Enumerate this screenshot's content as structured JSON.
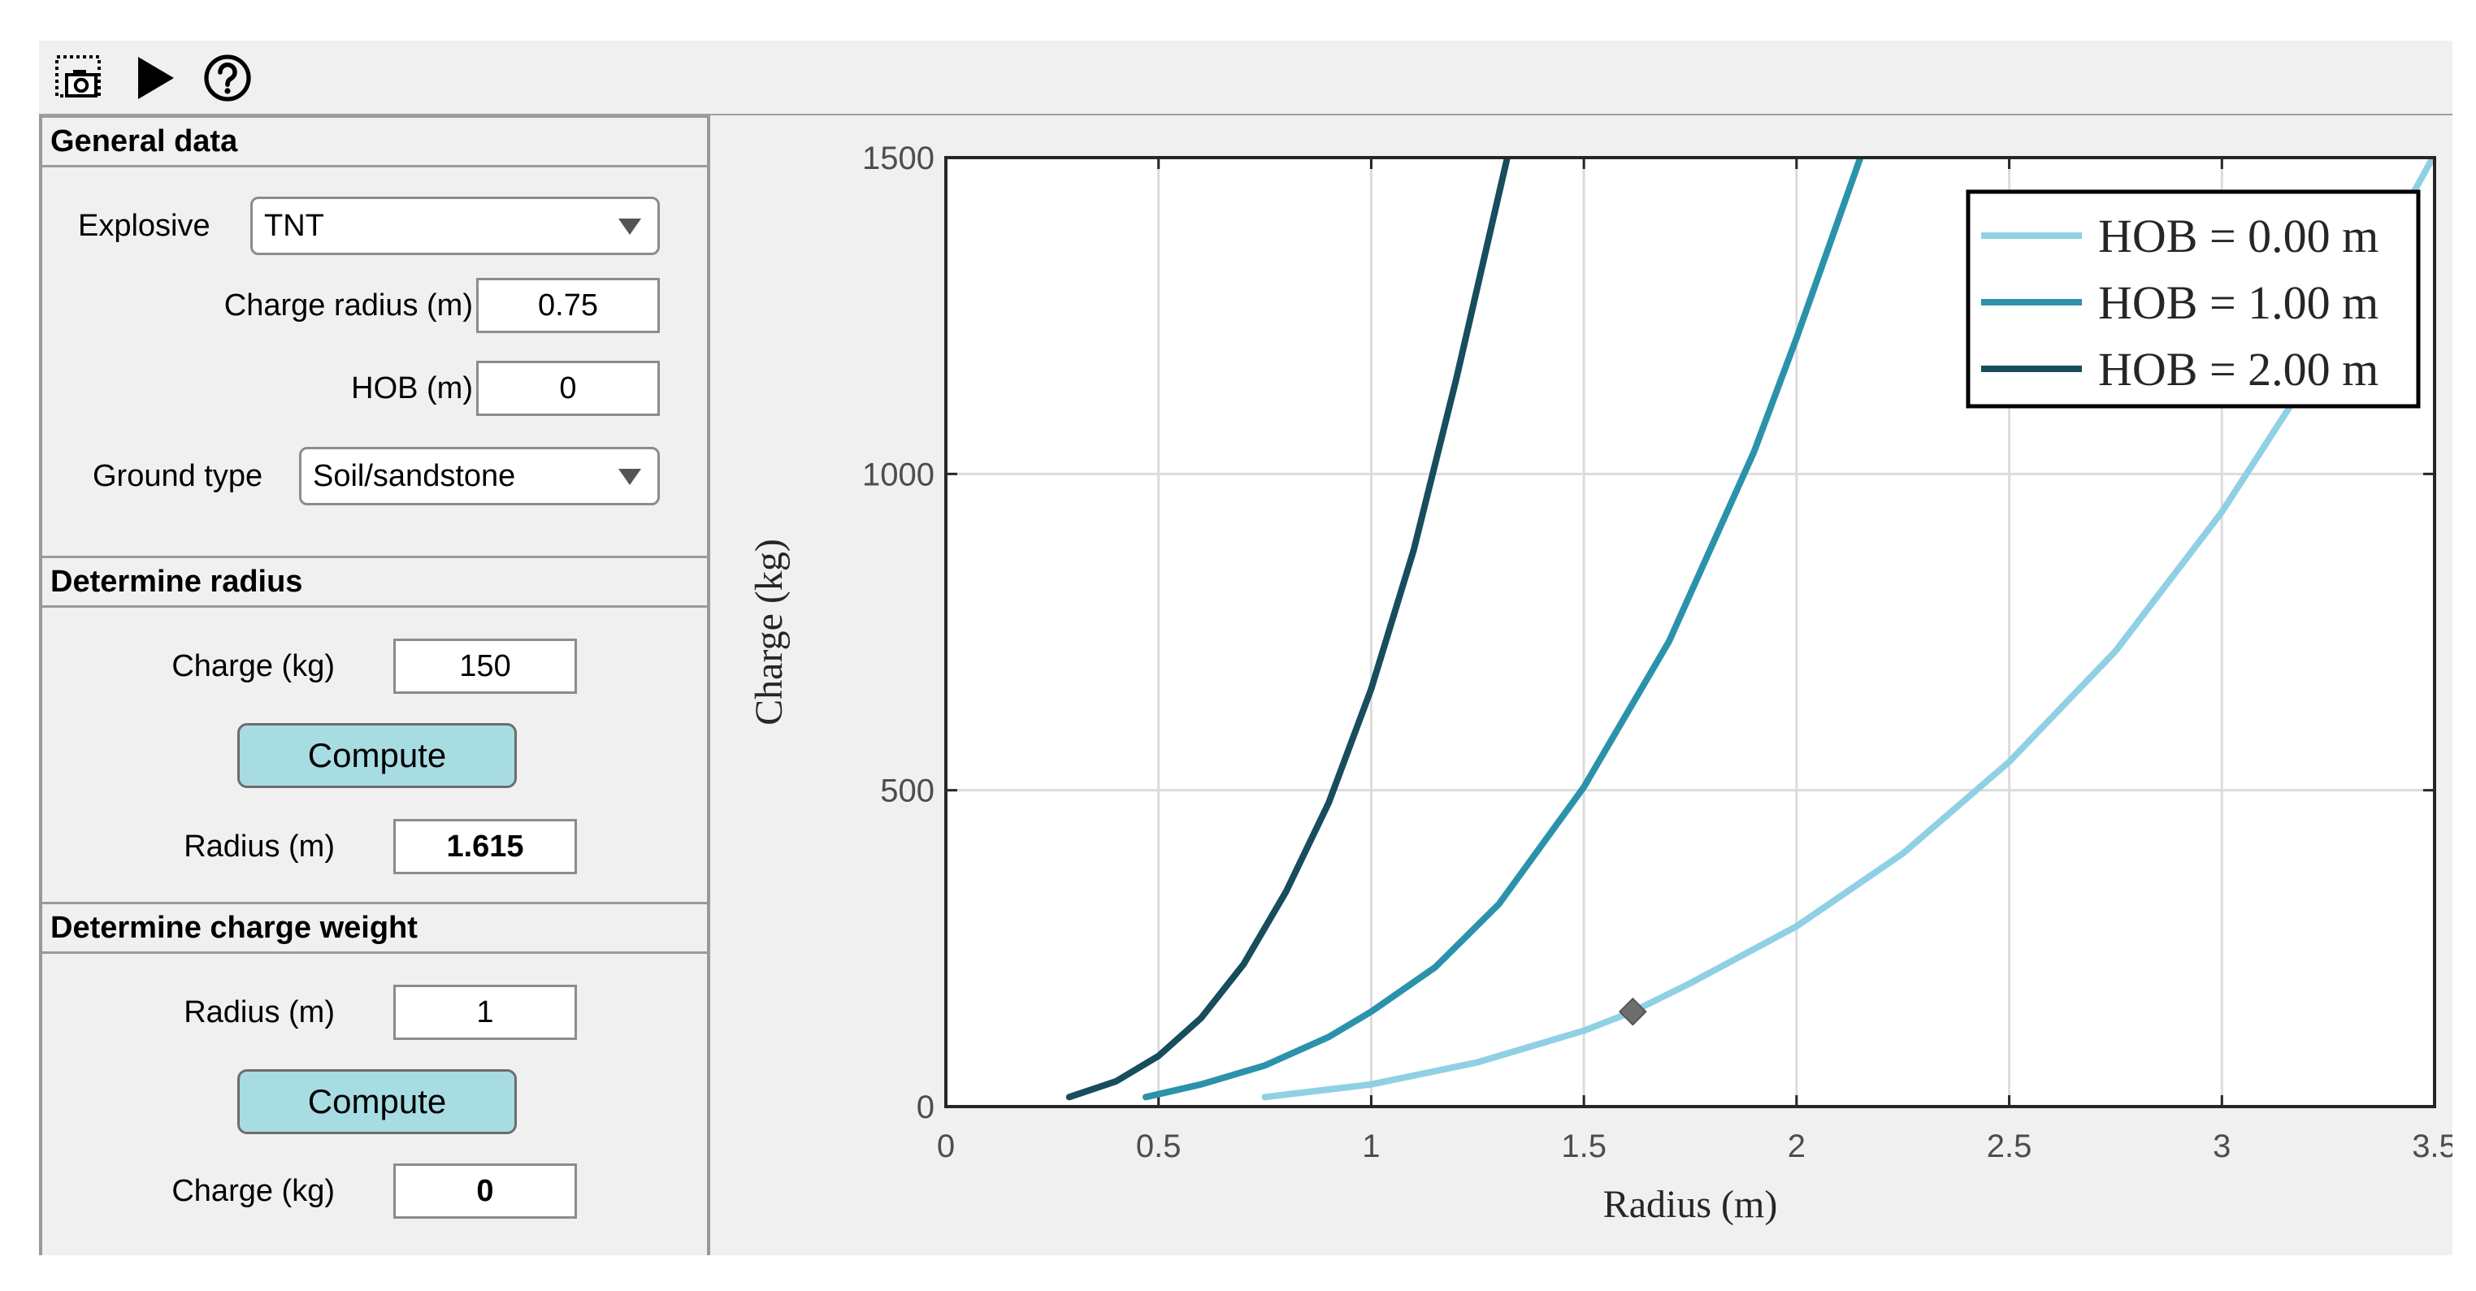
{
  "general": {
    "header": "General data",
    "explosive_label": "Explosive",
    "explosive_value": "TNT",
    "charge_radius_label": "Charge radius (m)",
    "charge_radius_value": "0.75",
    "hob_label": "HOB (m)",
    "hob_value": "0",
    "ground_label": "Ground type",
    "ground_value": "Soil/sandstone"
  },
  "radius_section": {
    "header": "Determine radius",
    "charge_label": "Charge (kg)",
    "charge_value": "150",
    "compute_label": "Compute",
    "radius_label": "Radius (m)",
    "radius_value": "1.615"
  },
  "weight_section": {
    "header": "Determine charge weight",
    "radius_label": "Radius (m)",
    "radius_value": "1",
    "compute_label": "Compute",
    "charge_label": "Charge (kg)",
    "charge_value": "0"
  },
  "toolbar": {
    "icons": [
      "screenshot-icon",
      "play-icon",
      "help-icon"
    ]
  },
  "chart_data": {
    "type": "line",
    "xlabel": "Radius (m)",
    "ylabel": "Charge (kg)",
    "xlim": [
      0,
      3.5
    ],
    "ylim": [
      0,
      1500
    ],
    "xticks": [
      "0",
      "0.5",
      "1",
      "1.5",
      "2",
      "2.5",
      "3",
      "3.5"
    ],
    "yticks": [
      "0",
      "500",
      "1000",
      "1500"
    ],
    "grid": true,
    "legend_position": "top-right",
    "series": [
      {
        "name": "HOB = 0.00 m",
        "color": "#8fd0e4",
        "x": [
          0.75,
          1.0,
          1.25,
          1.5,
          1.615,
          1.75,
          2.0,
          2.25,
          2.5,
          2.75,
          3.0,
          3.25,
          3.5
        ],
        "y": [
          15,
          35,
          70,
          120,
          150,
          195,
          285,
          400,
          545,
          720,
          940,
          1200,
          1505
        ]
      },
      {
        "name": "HOB = 1.00 m",
        "color": "#2b92ab",
        "x": [
          0.47,
          0.6,
          0.75,
          0.9,
          1.0,
          1.15,
          1.3,
          1.5,
          1.7,
          1.9,
          2.0,
          2.15
        ],
        "y": [
          15,
          35,
          65,
          110,
          150,
          220,
          320,
          505,
          735,
          1035,
          1215,
          1500
        ]
      },
      {
        "name": "HOB = 2.00 m",
        "color": "#174d5c",
        "x": [
          0.29,
          0.4,
          0.5,
          0.6,
          0.7,
          0.8,
          0.9,
          1.0,
          1.1,
          1.2,
          1.32
        ],
        "y": [
          15,
          40,
          80,
          140,
          225,
          340,
          480,
          660,
          880,
          1150,
          1500
        ]
      }
    ],
    "marker": {
      "x": 1.615,
      "y": 150,
      "shape": "diamond",
      "color": "#6e6e6e"
    }
  }
}
